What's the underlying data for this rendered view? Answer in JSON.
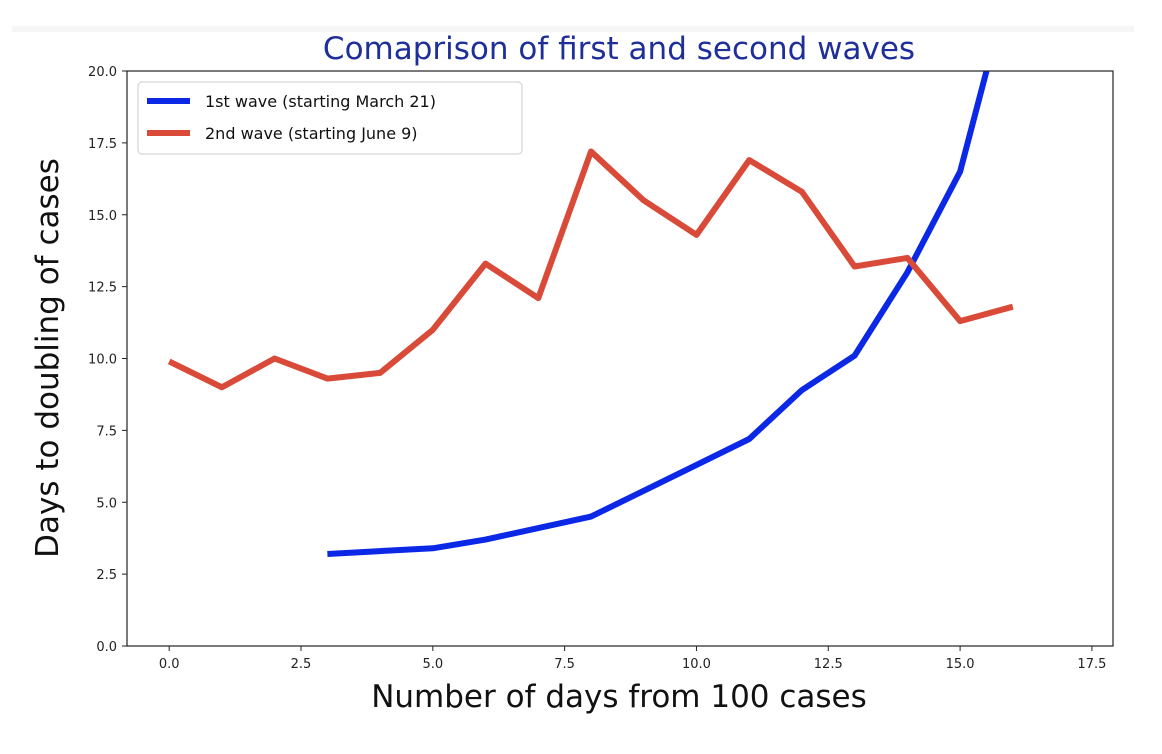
{
  "chart_data": {
    "type": "line",
    "title": "Comaprison of first and second waves",
    "xlabel": "Number of days from 100 cases",
    "ylabel": "Days to doubling of cases",
    "xlim": [
      -0.8,
      17.9
    ],
    "ylim": [
      0,
      20
    ],
    "xticks": [
      0,
      2.5,
      5,
      7.5,
      10,
      12.5,
      15,
      17.5
    ],
    "xtick_labels": [
      "0.0",
      "2.5",
      "5.0",
      "7.5",
      "10.0",
      "12.5",
      "15.0",
      "17.5"
    ],
    "yticks": [
      0,
      2.5,
      5,
      7.5,
      10,
      12.5,
      15,
      17.5,
      20
    ],
    "ytick_labels": [
      "0.0",
      "2.5",
      "5.0",
      "7.5",
      "10.0",
      "12.5",
      "15.0",
      "17.5",
      "20.0"
    ],
    "grid": false,
    "legend_position": "top-left",
    "series": [
      {
        "name": "1st wave (starting March 21)",
        "color": "#0a28e6",
        "x": [
          3,
          4,
          5,
          6,
          7,
          8,
          9,
          10,
          11,
          12,
          13,
          14,
          15,
          15.5
        ],
        "y": [
          3.2,
          3.3,
          3.4,
          3.7,
          4.1,
          4.5,
          5.4,
          6.3,
          7.2,
          8.9,
          10.1,
          13.0,
          16.5,
          20.0
        ]
      },
      {
        "name": "2nd wave (starting June 9)",
        "color": "#d94a38",
        "x": [
          0,
          1,
          2,
          3,
          4,
          5,
          6,
          7,
          8,
          9,
          10,
          11,
          12,
          13,
          14,
          15,
          16
        ],
        "y": [
          9.9,
          9.0,
          10.0,
          9.3,
          9.5,
          11.0,
          13.3,
          12.1,
          17.2,
          15.5,
          14.3,
          16.9,
          15.8,
          13.2,
          13.5,
          11.3,
          11.8
        ]
      }
    ]
  }
}
